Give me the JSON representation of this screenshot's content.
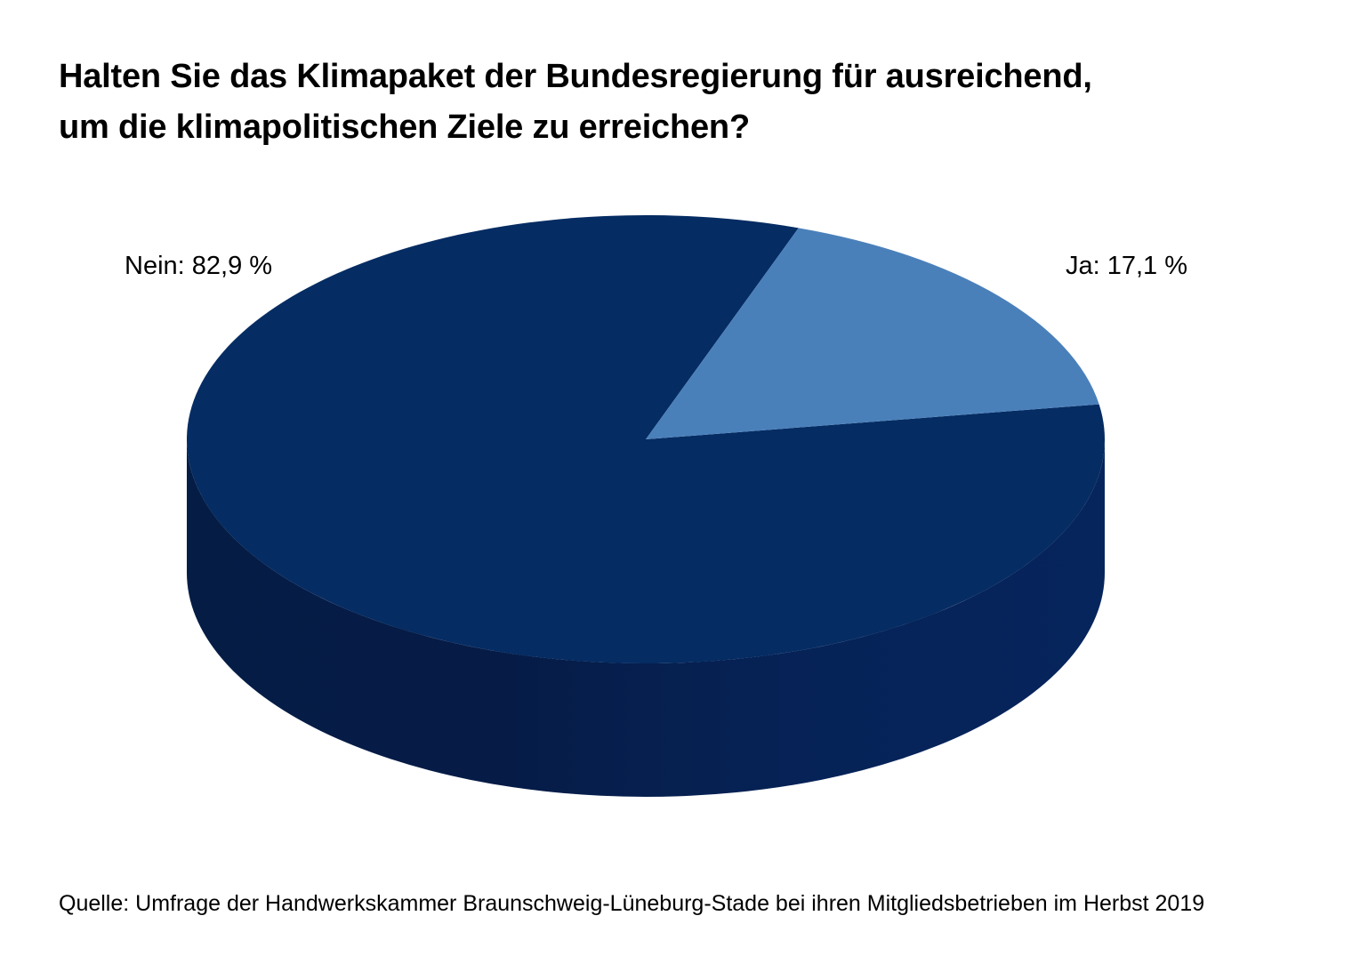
{
  "chart_data": {
    "type": "pie",
    "title_lines": [
      "Halten Sie das Klimapaket der Bundesregierung für ausreichend,",
      "um die klimapolitischen Ziele zu erreichen?"
    ],
    "slices": [
      {
        "label": "Nein",
        "value": 82.9,
        "display": "Nein: 82,9 %",
        "color": "#052c63"
      },
      {
        "label": "Ja",
        "value": 17.1,
        "display": "Ja: 17,1 %",
        "color": "#4a80ba"
      }
    ],
    "style": "3d"
  },
  "source": "Quelle: Umfrage der Handwerkskammer Braunschweig-Lüneburg-Stade bei ihren Mitgliedsbetrieben im Herbst 2019",
  "colors": {
    "nein": "#052c63",
    "nein_side": "#06214e",
    "ja": "#4a80ba"
  }
}
